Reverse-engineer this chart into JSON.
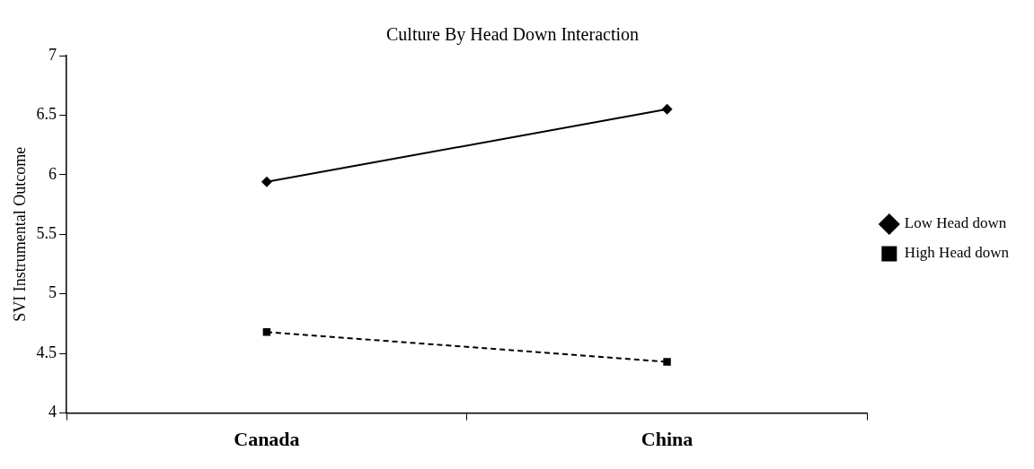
{
  "chart_data": {
    "type": "line",
    "title": "Culture By Head Down Interaction",
    "ylabel": "SVI Instrumental Outcome",
    "categories": [
      "Canada",
      "China"
    ],
    "series": [
      {
        "name": "Low Head down",
        "color": "#000000",
        "values": [
          5.94,
          6.55
        ],
        "marker": "diamond",
        "line_style": "solid"
      },
      {
        "name": "High Head down",
        "color": "#000000",
        "values": [
          4.68,
          4.43
        ],
        "marker": "square",
        "line_style": "dashed"
      }
    ],
    "ylim": [
      4,
      7
    ],
    "yticks": [
      4,
      4.5,
      5,
      5.5,
      6,
      6.5,
      7
    ],
    "grid": false,
    "legend": "right"
  }
}
